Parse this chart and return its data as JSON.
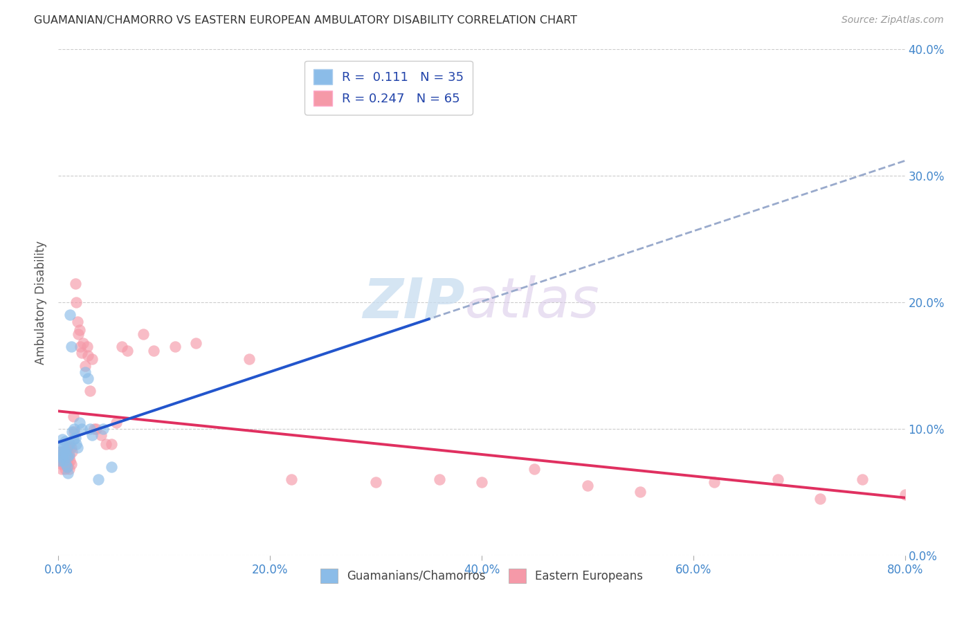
{
  "title": "GUAMANIAN/CHAMORRO VS EASTERN EUROPEAN AMBULATORY DISABILITY CORRELATION CHART",
  "source": "Source: ZipAtlas.com",
  "ylabel": "Ambulatory Disability",
  "xlim": [
    0.0,
    0.8
  ],
  "ylim": [
    0.0,
    0.4
  ],
  "xticks": [
    0.0,
    0.2,
    0.4,
    0.6,
    0.8
  ],
  "yticks": [
    0.0,
    0.1,
    0.2,
    0.3,
    0.4
  ],
  "R_blue": 0.111,
  "N_blue": 35,
  "R_pink": 0.247,
  "N_pink": 65,
  "color_blue": "#8bbce8",
  "color_pink": "#f599a8",
  "line_blue_color": "#2255cc",
  "line_pink_color": "#e03060",
  "line_dashed_color": "#99aacc",
  "legend_label_blue": "Guamanians/Chamorros",
  "legend_label_pink": "Eastern Europeans",
  "watermark_zip": "ZIP",
  "watermark_atlas": "atlas",
  "blue_x": [
    0.001,
    0.002,
    0.003,
    0.003,
    0.004,
    0.004,
    0.005,
    0.005,
    0.006,
    0.006,
    0.007,
    0.007,
    0.008,
    0.008,
    0.009,
    0.009,
    0.01,
    0.01,
    0.011,
    0.012,
    0.013,
    0.014,
    0.015,
    0.016,
    0.017,
    0.018,
    0.02,
    0.022,
    0.025,
    0.028,
    0.03,
    0.032,
    0.038,
    0.042,
    0.05
  ],
  "blue_y": [
    0.075,
    0.08,
    0.078,
    0.082,
    0.088,
    0.092,
    0.075,
    0.085,
    0.09,
    0.082,
    0.08,
    0.072,
    0.085,
    0.07,
    0.078,
    0.065,
    0.088,
    0.08,
    0.19,
    0.165,
    0.098,
    0.092,
    0.1,
    0.093,
    0.088,
    0.085,
    0.105,
    0.1,
    0.145,
    0.14,
    0.1,
    0.095,
    0.06,
    0.1,
    0.07
  ],
  "pink_x": [
    0.001,
    0.001,
    0.002,
    0.002,
    0.003,
    0.003,
    0.004,
    0.004,
    0.005,
    0.005,
    0.006,
    0.006,
    0.007,
    0.007,
    0.008,
    0.008,
    0.009,
    0.009,
    0.01,
    0.01,
    0.011,
    0.011,
    0.012,
    0.012,
    0.013,
    0.014,
    0.015,
    0.016,
    0.017,
    0.018,
    0.019,
    0.02,
    0.021,
    0.022,
    0.023,
    0.025,
    0.027,
    0.028,
    0.03,
    0.032,
    0.034,
    0.036,
    0.04,
    0.045,
    0.05,
    0.055,
    0.06,
    0.065,
    0.08,
    0.09,
    0.11,
    0.13,
    0.18,
    0.22,
    0.3,
    0.36,
    0.4,
    0.45,
    0.5,
    0.55,
    0.62,
    0.68,
    0.72,
    0.76,
    0.8
  ],
  "pink_y": [
    0.075,
    0.08,
    0.078,
    0.082,
    0.072,
    0.068,
    0.08,
    0.075,
    0.082,
    0.072,
    0.078,
    0.068,
    0.082,
    0.072,
    0.08,
    0.07,
    0.085,
    0.072,
    0.078,
    0.068,
    0.088,
    0.075,
    0.085,
    0.072,
    0.082,
    0.11,
    0.098,
    0.215,
    0.2,
    0.185,
    0.175,
    0.178,
    0.165,
    0.16,
    0.168,
    0.15,
    0.165,
    0.158,
    0.13,
    0.155,
    0.1,
    0.1,
    0.095,
    0.088,
    0.088,
    0.105,
    0.165,
    0.162,
    0.175,
    0.162,
    0.165,
    0.168,
    0.155,
    0.06,
    0.058,
    0.06,
    0.058,
    0.068,
    0.055,
    0.05,
    0.058,
    0.06,
    0.045,
    0.06,
    0.048
  ]
}
